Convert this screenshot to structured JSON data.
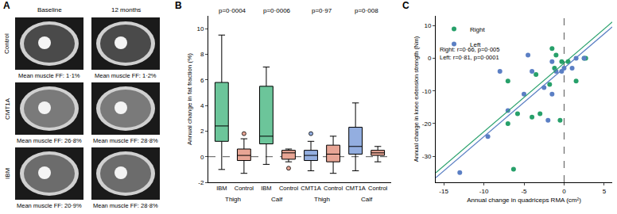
{
  "image_panel": {
    "label": "A",
    "columns": [
      "Baseline",
      "12 months"
    ],
    "rows": [
      {
        "label": "Control",
        "captions": [
          "Mean muscle FF: 1·1%",
          "Mean muscle FF: 1·2%"
        ]
      },
      {
        "label": "CMT1A",
        "captions": [
          "Mean muscle FF: 26·8%",
          "Mean muscle FF: 28·8%"
        ]
      },
      {
        "label": "IBM",
        "captions": [
          "Mean muscle FF: 20·9%",
          "Mean muscle FF: 28·8%"
        ]
      }
    ]
  },
  "chart_data": [
    {
      "type": "box",
      "title": "B",
      "categories": [
        "IBM",
        "Control",
        "IBM",
        "Control",
        "CMT1A",
        "Control",
        "CMT1A",
        "Control"
      ],
      "groups": [
        "Thigh",
        "Calf",
        "Thigh",
        "Calf"
      ],
      "annotations": [
        "p=0·0004",
        "p=0·0006",
        "p=0·97",
        "p=0·008"
      ],
      "y_label": "Annual change in fat fraction (%)",
      "colors": [
        "#6cc59a",
        "#e8a595",
        "#6cc59a",
        "#e8a595",
        "#93aee0",
        "#e8a595",
        "#93aee0",
        "#e8a595"
      ],
      "min": [
        -1.0,
        -1.3,
        -0.6,
        -0.4,
        -1.1,
        -1.3,
        -1.1,
        -0.4
      ],
      "q1": [
        1.2,
        -0.3,
        1.0,
        -0.2,
        -0.3,
        -0.4,
        0.2,
        0.1
      ],
      "median": [
        2.4,
        0.1,
        1.6,
        0.3,
        0.1,
        0.2,
        0.8,
        0.3
      ],
      "q3": [
        5.8,
        0.6,
        5.5,
        0.5,
        0.5,
        0.9,
        2.3,
        0.5
      ],
      "max": [
        9.5,
        1.4,
        7.0,
        0.6,
        1.2,
        1.6,
        4.2,
        0.8
      ],
      "outliers": [
        [],
        [
          1.8
        ],
        [],
        [
          -0.9
        ],
        [
          1.8
        ],
        [],
        [],
        []
      ],
      "hline": 0,
      "ylim": [
        -2,
        11
      ],
      "yticks": [
        -2,
        0,
        2,
        4,
        6,
        8,
        10
      ]
    },
    {
      "type": "scatter",
      "title": "C",
      "x_label": "Annual change in quadriceps RMA (cm²)",
      "y_label": "Annual change in knee extension strength (Nm)",
      "xlim": [
        -16,
        6
      ],
      "xticks": [
        -15,
        -10,
        -5,
        0,
        5
      ],
      "ylim": [
        -38,
        13
      ],
      "yticks": [
        -30,
        -20,
        -10,
        0,
        10
      ],
      "vline": 0,
      "legend": "upper left",
      "annotations": [
        "Right: r=0·66, p=0·005",
        "Left: r=0·81, p=0·0001"
      ],
      "series": [
        {
          "name": "Right",
          "color": "#27a06a",
          "x": [
            -7,
            -7,
            -6.3,
            -5.8,
            -4,
            -3.5,
            -3,
            -1.8,
            -1.5,
            -1,
            -1.2,
            -0.5,
            -0.3,
            0.5,
            1.5,
            2.5,
            2.7
          ],
          "values": [
            -7,
            -20,
            -34,
            -17,
            -18,
            -5,
            -17,
            -8,
            3,
            1,
            -3,
            -19,
            -1,
            -1,
            -7,
            0,
            0
          ],
          "fit_x": [
            -16,
            6
          ],
          "fit_y": [
            -35.1,
            11.1
          ]
        },
        {
          "name": "Left",
          "color": "#5b7fc4",
          "x": [
            -13,
            -9.5,
            -8,
            -7,
            -5,
            -4.5,
            -4,
            -2.5,
            -2,
            -1.5,
            -1.5,
            -1,
            -0.3,
            0,
            1,
            1.5,
            2.5
          ],
          "values": [
            -35,
            -24,
            -4,
            -16,
            -11,
            1,
            -4,
            -9,
            -19,
            -11,
            -1,
            -4,
            -4,
            -3,
            -3,
            0,
            0
          ],
          "fit_x": [
            -16,
            6
          ],
          "fit_y": [
            -36.6,
            9.6
          ]
        }
      ]
    }
  ]
}
